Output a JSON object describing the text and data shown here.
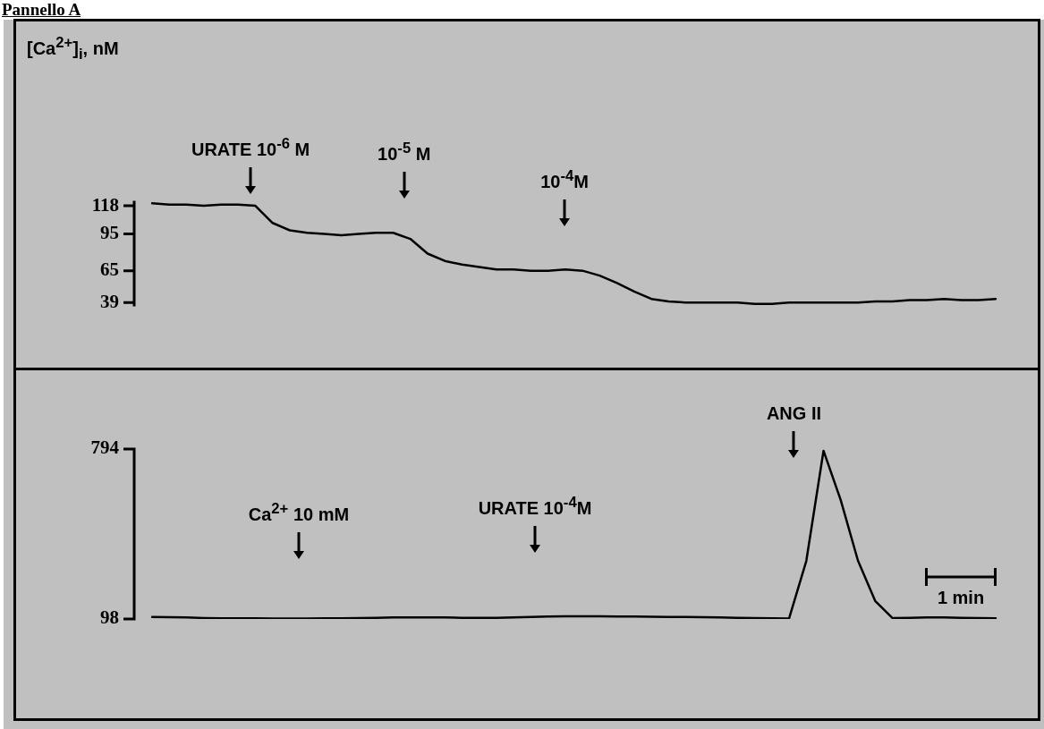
{
  "chart_data": [
    {
      "type": "line",
      "title": "Pannello A",
      "ylabel": "[Ca$^{2+}$]$_{i}$, nM",
      "categories": [
        null,
        null,
        null,
        null,
        null,
        null,
        null,
        null,
        null,
        null,
        null,
        null,
        null,
        null,
        null,
        null,
        null,
        null,
        null,
        null,
        null,
        null,
        null,
        null,
        null,
        null,
        null,
        null,
        null,
        null,
        null,
        null,
        null,
        null,
        null,
        null,
        null,
        null,
        null,
        null,
        null,
        null,
        null,
        null,
        null,
        null,
        null,
        null,
        null,
        null
      ],
      "series": [
        {
          "color": "#000000",
          "values": [
            120,
            119,
            119,
            118,
            119,
            119,
            118,
            104,
            98,
            96,
            95,
            94,
            95,
            96,
            96,
            91,
            79,
            73,
            70,
            68,
            66,
            66,
            65,
            65,
            66,
            65,
            61,
            55,
            48,
            42,
            40,
            39,
            39,
            39,
            39,
            38,
            38,
            39,
            39,
            39,
            39,
            39,
            40,
            40,
            41,
            41,
            42,
            41,
            41,
            42
          ]
        }
      ],
      "ylim": [
        37,
        121
      ],
      "yticks": [
        118,
        95,
        65,
        39
      ],
      "tick_labels": "y",
      "grid": false,
      "legend": false,
      "marker": "none",
      "line_style": "solid",
      "annotations": [
        "URATE 10$^{-6}$ M",
        "10$^{-5}$ M",
        "10$^{-4}$M"
      ]
    },
    {
      "type": "line",
      "categories": [
        null,
        null,
        null,
        null,
        null,
        null,
        null,
        null,
        null,
        null,
        null,
        null,
        null,
        null,
        null,
        null,
        null,
        null,
        null,
        null,
        null,
        null,
        null,
        null,
        null,
        null,
        null,
        null,
        null,
        null,
        null,
        null,
        null,
        null,
        null,
        null,
        null,
        null,
        null,
        null,
        null,
        null,
        null,
        null,
        null,
        null,
        null,
        null,
        null,
        null
      ],
      "series": [
        {
          "color": "#000000",
          "values": [
            106,
            105,
            104,
            102,
            101,
            101,
            101,
            100,
            100,
            100,
            101,
            101,
            102,
            103,
            104,
            104,
            104,
            104,
            103,
            103,
            103,
            104,
            106,
            108,
            109,
            109,
            109,
            108,
            108,
            107,
            106,
            106,
            105,
            104,
            103,
            102,
            101,
            100,
            336,
            787,
            585,
            337,
            172,
            102,
            103,
            104,
            104,
            103,
            102,
            101
          ]
        }
      ],
      "ylim": [
        98,
        794
      ],
      "yticks": [
        794,
        98
      ],
      "tick_labels": "y",
      "grid": false,
      "legend": false,
      "marker": "none",
      "line_style": "solid",
      "annotations": [
        "Ca$^{2+}$ 10 mM",
        "URATE 10$^{-4}$M",
        "ANG II",
        "1 min"
      ]
    }
  ]
}
